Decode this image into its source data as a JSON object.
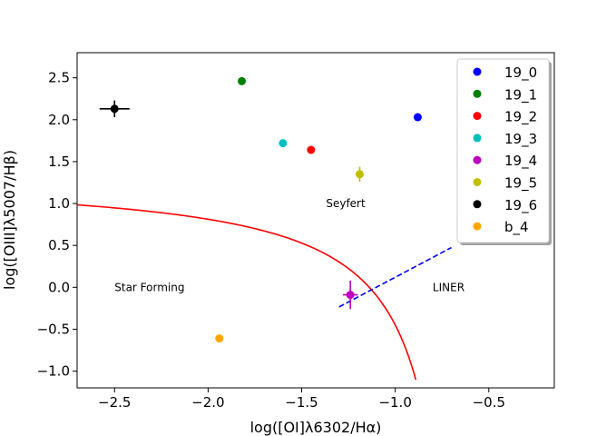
{
  "chart_data": {
    "type": "scatter",
    "title": "",
    "xlabel": "log([OI]λ6302/Hα)",
    "ylabel": "log([OIII]λ5007/Hβ)",
    "xlim": [
      -2.7,
      -0.15
    ],
    "ylim": [
      -1.2,
      2.8
    ],
    "xticks": [
      -2.5,
      -2.0,
      -1.5,
      -1.0,
      -0.5
    ],
    "xtick_labels": [
      "−2.5",
      "−2.0",
      "−1.5",
      "−1.0",
      "−0.5"
    ],
    "yticks": [
      -1.0,
      -0.5,
      0.0,
      0.5,
      1.0,
      1.5,
      2.0,
      2.5
    ],
    "ytick_labels": [
      "−1.0",
      "−0.5",
      "0.0",
      "0.5",
      "1.0",
      "1.5",
      "2.0",
      "2.5"
    ],
    "grid": false,
    "legend_position": "top-right",
    "series": [
      {
        "name": "19_0",
        "color": "#0000ff",
        "x": -0.88,
        "y": 2.03
      },
      {
        "name": "19_1",
        "color": "#008000",
        "x": -1.82,
        "y": 2.46
      },
      {
        "name": "19_2",
        "color": "#ff0000",
        "x": -1.45,
        "y": 1.64
      },
      {
        "name": "19_3",
        "color": "#00bfbf",
        "x": -1.6,
        "y": 1.72
      },
      {
        "name": "19_4",
        "color": "#bf00bf",
        "x": -1.24,
        "y": -0.09,
        "xerr": 0.04,
        "yerr": 0.17
      },
      {
        "name": "19_5",
        "color": "#bfbf00",
        "x": -1.19,
        "y": 1.35,
        "yerr": 0.09
      },
      {
        "name": "19_6",
        "color": "#000000",
        "x": -2.5,
        "y": 2.13,
        "xerr": 0.08,
        "yerr": 0.1
      },
      {
        "name": "b_4",
        "color": "#ffa500",
        "x": -1.94,
        "y": -0.61
      }
    ],
    "curves": [
      {
        "name": "kewley-maximum-starburst",
        "color": "#ff0000",
        "style": "solid",
        "equation": "y = 0.73/(x + 0.59) + 1.33",
        "x_range": [
          -2.7,
          -0.89
        ]
      },
      {
        "name": "seyfert-liner-division",
        "color": "#0000ff",
        "style": "dashed",
        "equation": "y = 1.18x + 1.30",
        "x_range": [
          -1.3,
          -0.7
        ]
      }
    ],
    "annotations": [
      {
        "text": "Star Forming",
        "x": -2.5,
        "y": 0.0
      },
      {
        "text": "Seyfert",
        "x": -1.37,
        "y": 1.0
      },
      {
        "text": "LINER",
        "x": -0.8,
        "y": 0.0
      }
    ]
  }
}
